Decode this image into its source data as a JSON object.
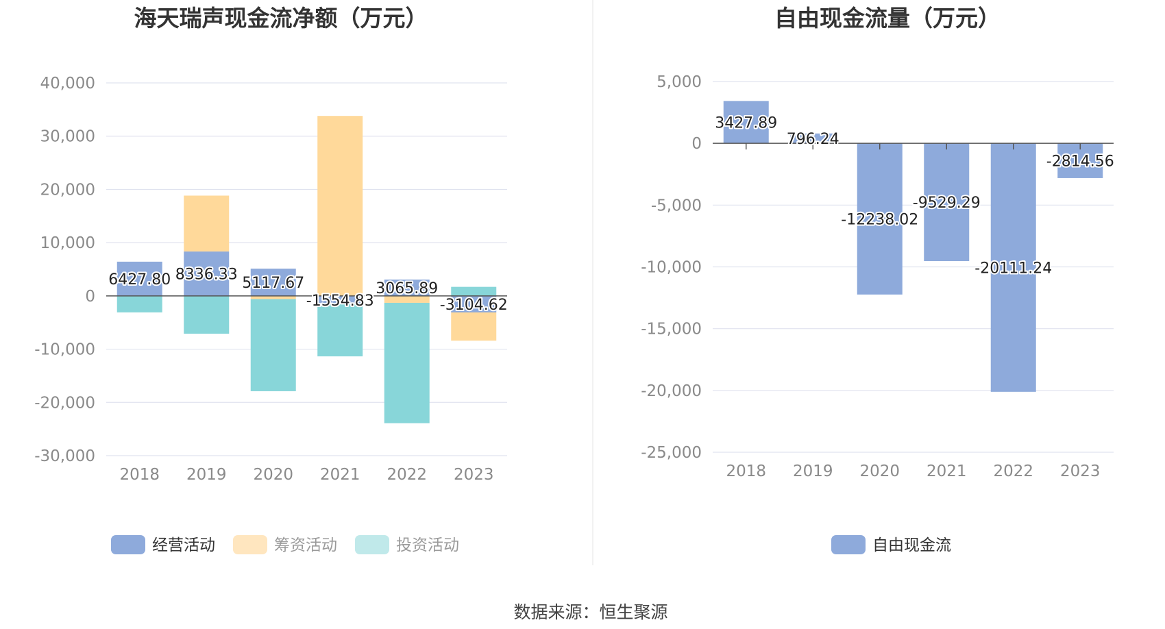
{
  "source_label": "数据来源：恒生聚源",
  "chart_data": [
    {
      "type": "bar",
      "stacked": true,
      "title": "海天瑞声现金流净额（万元）",
      "categories": [
        "2018",
        "2019",
        "2020",
        "2021",
        "2022",
        "2023"
      ],
      "ylim": [
        -30000,
        40000
      ],
      "yticks": [
        40000,
        30000,
        20000,
        10000,
        0,
        -10000,
        -20000,
        -30000
      ],
      "ytick_labels": [
        "40,000",
        "30,000",
        "20,000",
        "10,000",
        "0",
        "-10,000",
        "-20,000",
        "-30,000"
      ],
      "grid": true,
      "legend_position": "bottom",
      "series": [
        {
          "name": "经营活动",
          "color": "#8eaadb",
          "values": [
            6427.8,
            8336.33,
            5117.67,
            -1554.83,
            3065.89,
            -3104.62
          ],
          "labels": [
            "6427.80",
            "8336.33",
            "5117.67",
            "-1554.83",
            "3065.89",
            "-3104.62"
          ]
        },
        {
          "name": "筹资活动",
          "color": "#ffd99a",
          "values": [
            0,
            10500,
            -600,
            33800,
            -1300,
            -5300
          ]
        },
        {
          "name": "投资活动",
          "color": "#88d6d9",
          "values": [
            -3100,
            -7100,
            -17300,
            -9800,
            -22600,
            1700
          ]
        }
      ]
    },
    {
      "type": "bar",
      "title": "自由现金流量（万元）",
      "categories": [
        "2018",
        "2019",
        "2020",
        "2021",
        "2022",
        "2023"
      ],
      "ylim": [
        -25000,
        5000
      ],
      "yticks": [
        5000,
        0,
        -5000,
        -10000,
        -15000,
        -20000,
        -25000
      ],
      "ytick_labels": [
        "5,000",
        "0",
        "-5,000",
        "-10,000",
        "-15,000",
        "-20,000",
        "-25,000"
      ],
      "grid": true,
      "legend_position": "bottom",
      "series": [
        {
          "name": "自由现金流",
          "color": "#8eaadb",
          "values": [
            3427.89,
            796.24,
            -12238.02,
            -9529.29,
            -20111.24,
            -2814.56
          ],
          "labels": [
            "3427.89",
            "796.24",
            "-12238.02",
            "-9529.29",
            "-20111.24",
            "-2814.56"
          ]
        }
      ]
    }
  ]
}
